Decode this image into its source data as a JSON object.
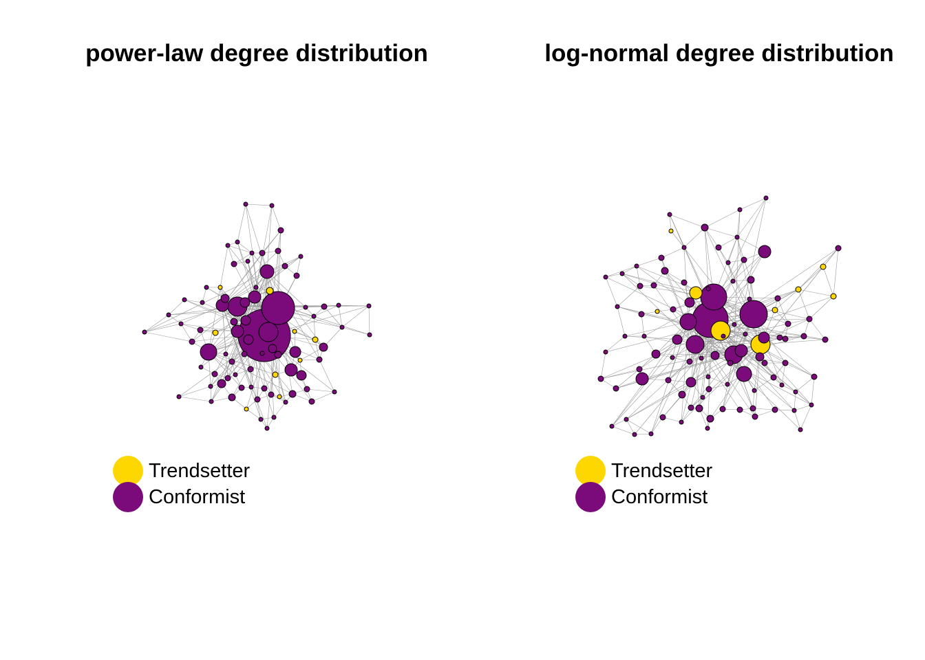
{
  "colors": {
    "trendsetter": "#FFD700",
    "conformist": "#7B0A7B",
    "edge": "#9a9a9a",
    "stroke": "#000000"
  },
  "panels": [
    {
      "title": "power-law degree distribution",
      "legend": [
        {
          "label": "Trendsetter",
          "color": "#FFD700"
        },
        {
          "label": "Conformist",
          "color": "#7B0A7B"
        }
      ],
      "nodes": [
        [
          357,
          297,
          3,
          0
        ],
        [
          395,
          299,
          3,
          0
        ],
        [
          408,
          335,
          4,
          0
        ],
        [
          331,
          357,
          3,
          0
        ],
        [
          345,
          352,
          3,
          0
        ],
        [
          366,
          368,
          3,
          0
        ],
        [
          381,
          368,
          4,
          0
        ],
        [
          404,
          365,
          4,
          0
        ],
        [
          437,
          373,
          3,
          0
        ],
        [
          340,
          384,
          4,
          0
        ],
        [
          360,
          380,
          3,
          0
        ],
        [
          388,
          395,
          10,
          0
        ],
        [
          414,
          387,
          4,
          0
        ],
        [
          431,
          401,
          4,
          0
        ],
        [
          320,
          418,
          3,
          1
        ],
        [
          300,
          418,
          3,
          0
        ],
        [
          372,
          418,
          3,
          0
        ],
        [
          392,
          423,
          5,
          1
        ],
        [
          327,
          434,
          6,
          0
        ],
        [
          345,
          446,
          14,
          0
        ],
        [
          356,
          440,
          7,
          0
        ],
        [
          370,
          432,
          9,
          0
        ],
        [
          404,
          448,
          24,
          0
        ],
        [
          268,
          436,
          3,
          0
        ],
        [
          294,
          440,
          3,
          0
        ],
        [
          323,
          444,
          9,
          0
        ],
        [
          444,
          447,
          3,
          0
        ],
        [
          471,
          446,
          4,
          0
        ],
        [
          492,
          444,
          3,
          0
        ],
        [
          536,
          445,
          3,
          0
        ],
        [
          245,
          458,
          3,
          0
        ],
        [
          263,
          471,
          3,
          0
        ],
        [
          291,
          480,
          4,
          0
        ],
        [
          313,
          484,
          4,
          1
        ],
        [
          340,
          468,
          5,
          0
        ],
        [
          357,
          466,
          7,
          0
        ],
        [
          384,
          488,
          38,
          0
        ],
        [
          390,
          483,
          14,
          0
        ],
        [
          428,
          482,
          3,
          1
        ],
        [
          456,
          460,
          3,
          0
        ],
        [
          210,
          483,
          3,
          0
        ],
        [
          279,
          497,
          4,
          0
        ],
        [
          303,
          512,
          12,
          0
        ],
        [
          345,
          482,
          9,
          0
        ],
        [
          361,
          494,
          7,
          0
        ],
        [
          396,
          507,
          6,
          0
        ],
        [
          404,
          516,
          5,
          0
        ],
        [
          458,
          494,
          4,
          1
        ],
        [
          470,
          505,
          6,
          0
        ],
        [
          497,
          476,
          3,
          0
        ],
        [
          537,
          487,
          3,
          0
        ],
        [
          328,
          515,
          3,
          0
        ],
        [
          337,
          526,
          4,
          0
        ],
        [
          355,
          515,
          4,
          0
        ],
        [
          381,
          514,
          3,
          0
        ],
        [
          429,
          512,
          8,
          0
        ],
        [
          436,
          524,
          3,
          1
        ],
        [
          464,
          523,
          4,
          0
        ],
        [
          292,
          534,
          3,
          0
        ],
        [
          312,
          544,
          4,
          0
        ],
        [
          342,
          545,
          3,
          0
        ],
        [
          364,
          537,
          4,
          0
        ],
        [
          400,
          545,
          4,
          1
        ],
        [
          423,
          538,
          9,
          0
        ],
        [
          438,
          546,
          7,
          0
        ],
        [
          306,
          562,
          3,
          0
        ],
        [
          322,
          558,
          6,
          0
        ],
        [
          331,
          550,
          4,
          0
        ],
        [
          351,
          564,
          4,
          0
        ],
        [
          365,
          563,
          3,
          0
        ],
        [
          384,
          565,
          4,
          0
        ],
        [
          394,
          574,
          4,
          0
        ],
        [
          406,
          577,
          3,
          1
        ],
        [
          425,
          573,
          5,
          0
        ],
        [
          446,
          566,
          4,
          0
        ],
        [
          486,
          570,
          3,
          0
        ],
        [
          260,
          577,
          3,
          0
        ],
        [
          307,
          584,
          3,
          0
        ],
        [
          337,
          578,
          5,
          0
        ],
        [
          374,
          581,
          4,
          0
        ],
        [
          415,
          585,
          3,
          0
        ],
        [
          453,
          584,
          4,
          0
        ],
        [
          358,
          595,
          3,
          1
        ],
        [
          379,
          610,
          3,
          0
        ],
        [
          388,
          623,
          3,
          0
        ],
        [
          398,
          607,
          3,
          0
        ]
      ]
    },
    {
      "title": "log-normal degree distribution",
      "legend": [
        {
          "label": "Trendsetter",
          "color": "#FFD700"
        },
        {
          "label": "Conformist",
          "color": "#7B0A7B"
        }
      ],
      "nodes": [
        [
          1113,
          288,
          3,
          0
        ],
        [
          1075,
          305,
          3,
          0
        ],
        [
          973,
          312,
          3,
          0
        ],
        [
          1024,
          331,
          5,
          0
        ],
        [
          975,
          336,
          3,
          1
        ],
        [
          1071,
          345,
          3,
          0
        ],
        [
          1111,
          366,
          9,
          0
        ],
        [
          1218,
          361,
          4,
          0
        ],
        [
          1044,
          360,
          4,
          0
        ],
        [
          994,
          360,
          3,
          0
        ],
        [
          961,
          375,
          4,
          0
        ],
        [
          1058,
          382,
          3,
          0
        ],
        [
          1081,
          378,
          4,
          0
        ],
        [
          925,
          387,
          3,
          0
        ],
        [
          1196,
          388,
          4,
          1
        ],
        [
          1091,
          407,
          5,
          0
        ],
        [
          1065,
          409,
          3,
          0
        ],
        [
          1160,
          421,
          4,
          1
        ],
        [
          1211,
          431,
          4,
          1
        ],
        [
          880,
          403,
          3,
          0
        ],
        [
          904,
          398,
          3,
          0
        ],
        [
          930,
          416,
          4,
          0
        ],
        [
          950,
          415,
          4,
          0
        ],
        [
          966,
          394,
          5,
          0
        ],
        [
          994,
          411,
          4,
          0
        ],
        [
          1002,
          440,
          7,
          0
        ],
        [
          1011,
          426,
          9,
          1
        ],
        [
          1037,
          432,
          19,
          0
        ],
        [
          1029,
          420,
          3,
          0
        ],
        [
          1089,
          435,
          3,
          0
        ],
        [
          1130,
          434,
          4,
          0
        ],
        [
          1126,
          451,
          4,
          1
        ],
        [
          1095,
          457,
          20,
          0
        ],
        [
          897,
          446,
          3,
          0
        ],
        [
          932,
          457,
          4,
          0
        ],
        [
          955,
          453,
          3,
          1
        ],
        [
          978,
          450,
          4,
          0
        ],
        [
          1000,
          468,
          12,
          0
        ],
        [
          1032,
          465,
          26,
          0
        ],
        [
          1047,
          481,
          14,
          1
        ],
        [
          1067,
          472,
          3,
          0
        ],
        [
          1145,
          471,
          4,
          0
        ],
        [
          1176,
          464,
          4,
          0
        ],
        [
          1133,
          491,
          4,
          0
        ],
        [
          1168,
          489,
          4,
          0
        ],
        [
          1199,
          494,
          4,
          0
        ],
        [
          908,
          489,
          3,
          0
        ],
        [
          936,
          489,
          3,
          0
        ],
        [
          984,
          494,
          7,
          0
        ],
        [
          1010,
          501,
          13,
          0
        ],
        [
          1051,
          489,
          3,
          0
        ],
        [
          1083,
          486,
          3,
          0
        ],
        [
          1105,
          501,
          14,
          1
        ],
        [
          1110,
          491,
          8,
          0
        ],
        [
          1141,
          493,
          4,
          0
        ],
        [
          880,
          512,
          3,
          0
        ],
        [
          953,
          515,
          6,
          0
        ],
        [
          977,
          520,
          3,
          0
        ],
        [
          1019,
          521,
          3,
          0
        ],
        [
          1039,
          517,
          6,
          0
        ],
        [
          1066,
          516,
          13,
          0
        ],
        [
          1077,
          510,
          9,
          0
        ],
        [
          1104,
          519,
          6,
          0
        ],
        [
          1061,
          528,
          4,
          0
        ],
        [
          1002,
          526,
          4,
          0
        ],
        [
          929,
          537,
          4,
          0
        ],
        [
          1111,
          528,
          4,
          0
        ],
        [
          1141,
          528,
          4,
          0
        ],
        [
          873,
          551,
          4,
          0
        ],
        [
          933,
          551,
          9,
          0
        ],
        [
          971,
          553,
          4,
          0
        ],
        [
          1004,
          556,
          7,
          0
        ],
        [
          1081,
          544,
          11,
          0
        ],
        [
          1124,
          549,
          4,
          0
        ],
        [
          1183,
          548,
          4,
          0
        ],
        [
          1029,
          548,
          3,
          0
        ],
        [
          1057,
          559,
          3,
          0
        ],
        [
          1136,
          560,
          3,
          0
        ],
        [
          895,
          565,
          4,
          0
        ],
        [
          991,
          574,
          5,
          0
        ],
        [
          1030,
          566,
          4,
          0
        ],
        [
          1096,
          568,
          3,
          0
        ],
        [
          1156,
          570,
          3,
          0
        ],
        [
          1021,
          578,
          3,
          0
        ],
        [
          1004,
          593,
          4,
          0
        ],
        [
          1016,
          594,
          5,
          0
        ],
        [
          1050,
          595,
          4,
          0
        ],
        [
          1075,
          596,
          4,
          0
        ],
        [
          1094,
          594,
          4,
          0
        ],
        [
          1126,
          596,
          4,
          0
        ],
        [
          1154,
          597,
          3,
          0
        ],
        [
          1179,
          589,
          3,
          0
        ],
        [
          963,
          607,
          4,
          0
        ],
        [
          1032,
          609,
          5,
          0
        ],
        [
          1097,
          606,
          4,
          0
        ],
        [
          910,
          610,
          3,
          0
        ],
        [
          990,
          614,
          3,
          0
        ],
        [
          1163,
          625,
          3,
          0
        ],
        [
          889,
          620,
          3,
          0
        ],
        [
          922,
          632,
          3,
          0
        ],
        [
          946,
          631,
          3,
          0
        ],
        [
          1028,
          623,
          3,
          0
        ]
      ]
    }
  ]
}
